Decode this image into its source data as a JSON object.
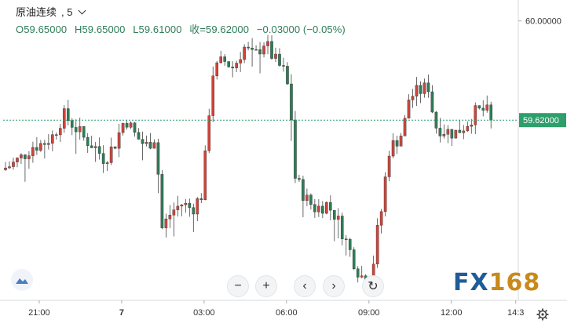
{
  "header": {
    "symbol": "原油连续",
    "interval": "5",
    "open": "O59.65000",
    "high": "H59.65000",
    "low": "L59.61000",
    "close": "收=59.62000",
    "change": "−0.03000 (−0.05%)"
  },
  "controls": {
    "zoom_out": "−",
    "zoom_in": "+",
    "scroll_left": "‹",
    "scroll_right": "›",
    "reset": "↻"
  },
  "logo": {
    "text_fx": "FX",
    "text_num": "168"
  },
  "colors": {
    "up": "#d0443a",
    "down": "#2e7d57",
    "price_line": "#2e9e6b",
    "price_label_bg": "#2e9e6b"
  },
  "chart_data": {
    "type": "candlestick",
    "title": "原油连续, 5",
    "y_axis_side": "right",
    "ylim": [
      58.93,
      60.05
    ],
    "y_ticks": [
      {
        "value": 60.0,
        "label": "60.00000"
      }
    ],
    "current_price": {
      "value": 59.62,
      "label": "59.62000"
    },
    "x_ticks": [
      {
        "label": "21:00",
        "frac": 0.07
      },
      {
        "label": "7",
        "frac": 0.23
      },
      {
        "label": "03:00",
        "frac": 0.39
      },
      {
        "label": "06:00",
        "frac": 0.55
      },
      {
        "label": "09:00",
        "frac": 0.71
      },
      {
        "label": "12:00",
        "frac": 0.87
      },
      {
        "label": "14:3",
        "frac": 0.995
      }
    ],
    "close_path": [
      [
        0.0,
        59.43
      ],
      [
        0.02,
        59.45
      ],
      [
        0.04,
        59.48
      ],
      [
        0.06,
        59.52
      ],
      [
        0.08,
        59.53
      ],
      [
        0.1,
        59.56
      ],
      [
        0.12,
        59.64
      ],
      [
        0.14,
        59.6
      ],
      [
        0.16,
        59.55
      ],
      [
        0.18,
        59.52
      ],
      [
        0.2,
        59.47
      ],
      [
        0.22,
        59.53
      ],
      [
        0.24,
        59.63
      ],
      [
        0.26,
        59.56
      ],
      [
        0.28,
        59.52
      ],
      [
        0.3,
        59.56
      ],
      [
        0.31,
        59.2
      ],
      [
        0.33,
        59.27
      ],
      [
        0.35,
        59.3
      ],
      [
        0.37,
        59.28
      ],
      [
        0.39,
        59.34
      ],
      [
        0.4,
        59.6
      ],
      [
        0.41,
        59.8
      ],
      [
        0.43,
        59.85
      ],
      [
        0.45,
        59.82
      ],
      [
        0.47,
        59.9
      ],
      [
        0.49,
        59.86
      ],
      [
        0.51,
        59.92
      ],
      [
        0.53,
        59.85
      ],
      [
        0.55,
        59.8
      ],
      [
        0.56,
        59.7
      ],
      [
        0.57,
        59.4
      ],
      [
        0.59,
        59.32
      ],
      [
        0.61,
        59.28
      ],
      [
        0.63,
        59.3
      ],
      [
        0.65,
        59.25
      ],
      [
        0.66,
        59.2
      ],
      [
        0.67,
        59.15
      ],
      [
        0.68,
        59.1
      ],
      [
        0.69,
        59.05
      ],
      [
        0.7,
        59.02
      ],
      [
        0.71,
        58.99
      ],
      [
        0.72,
        59.05
      ],
      [
        0.73,
        59.2
      ],
      [
        0.74,
        59.3
      ],
      [
        0.75,
        59.5
      ],
      [
        0.77,
        59.55
      ],
      [
        0.78,
        59.58
      ],
      [
        0.79,
        59.7
      ],
      [
        0.8,
        59.72
      ],
      [
        0.82,
        59.74
      ],
      [
        0.83,
        59.75
      ],
      [
        0.84,
        59.6
      ],
      [
        0.86,
        59.58
      ],
      [
        0.88,
        59.57
      ],
      [
        0.9,
        59.6
      ],
      [
        0.92,
        59.65
      ],
      [
        0.94,
        59.66
      ],
      [
        0.95,
        59.62
      ]
    ]
  }
}
